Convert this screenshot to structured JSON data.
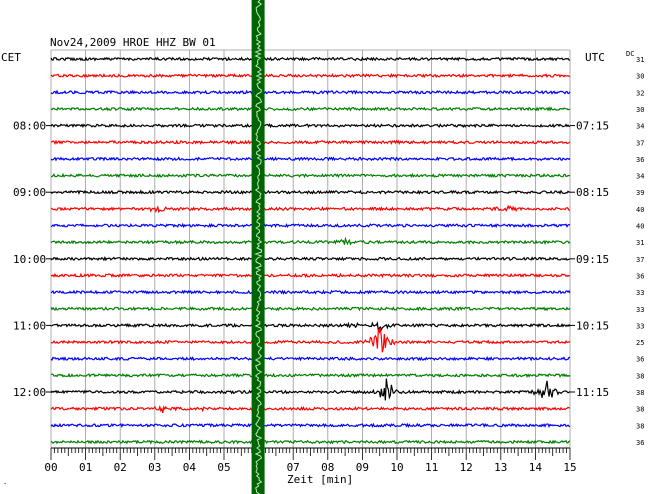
{
  "chart_data": {
    "type": "line",
    "title": "Nov24,2009   HROE HHZ BW 01",
    "left_axis_label": "CET",
    "right_axis_label": "UTC",
    "dc_label": "DC",
    "xlabel": "Zeit [min]",
    "x_ticks": [
      "00",
      "01",
      "02",
      "03",
      "04",
      "05",
      "06",
      "07",
      "08",
      "09",
      "10",
      "11",
      "12",
      "13",
      "14",
      "15"
    ],
    "xlim": [
      0,
      15
    ],
    "trace_colors": [
      "#000000",
      "#ff0000",
      "#0000ff",
      "#008000"
    ],
    "left_hour_labels": [
      {
        "label": "08:00",
        "trace": 4
      },
      {
        "label": "09:00",
        "trace": 8
      },
      {
        "label": "10:00",
        "trace": 12
      },
      {
        "label": "11:00",
        "trace": 16
      },
      {
        "label": "12:00",
        "trace": 20
      }
    ],
    "right_time_labels": [
      {
        "label": "07:15",
        "trace": 4
      },
      {
        "label": "08:15",
        "trace": 8
      },
      {
        "label": "09:15",
        "trace": 12
      },
      {
        "label": "10:15",
        "trace": 16
      },
      {
        "label": "11:15",
        "trace": 20
      }
    ],
    "dc_values": [
      "31",
      "30",
      "32",
      "30",
      "34",
      "37",
      "36",
      "34",
      "39",
      "40",
      "40",
      "31",
      "37",
      "36",
      "33",
      "33",
      "33",
      "25",
      "36",
      "38",
      "38",
      "38",
      "38",
      "36"
    ],
    "events": [
      {
        "trace": 9,
        "minute": 3.1,
        "amplitude": 0.6
      },
      {
        "trace": 9,
        "minute": 13.2,
        "amplitude": 0.5
      },
      {
        "trace": 11,
        "minute": 8.5,
        "amplitude": 0.5
      },
      {
        "trace": 16,
        "minute": 8.7,
        "amplitude": 0.4
      },
      {
        "trace": 16,
        "minute": 9.5,
        "amplitude": 0.8
      },
      {
        "trace": 17,
        "minute": 9.5,
        "amplitude": 2.4
      },
      {
        "trace": 20,
        "minute": 9.7,
        "amplitude": 2.0
      },
      {
        "trace": 20,
        "minute": 14.3,
        "amplitude": 2.0
      },
      {
        "trace": 21,
        "minute": 3.2,
        "amplitude": 0.5
      },
      {
        "trace": 21,
        "minute": 4.4,
        "amplitude": 0.3
      }
    ],
    "spike": {
      "minute": 6.0,
      "color": "#006400"
    },
    "grid": true
  }
}
